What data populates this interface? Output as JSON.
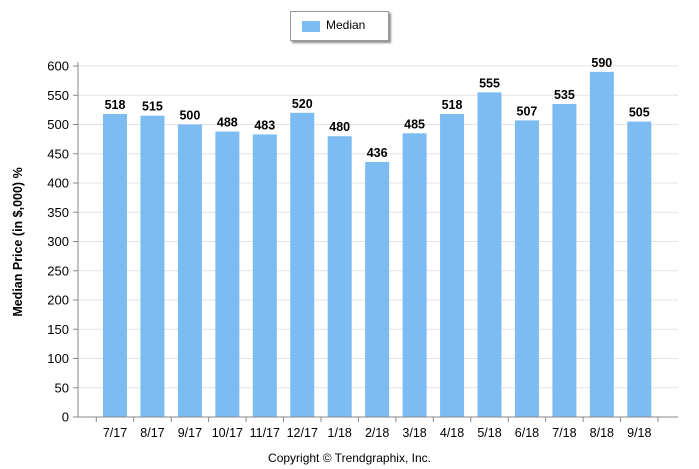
{
  "chart_data": {
    "type": "bar",
    "categories": [
      "7/17",
      "8/17",
      "9/17",
      "10/17",
      "11/17",
      "12/17",
      "1/18",
      "2/18",
      "3/18",
      "4/18",
      "5/18",
      "6/18",
      "7/18",
      "8/18",
      "9/18"
    ],
    "series": [
      {
        "name": "Median",
        "values": [
          518,
          515,
          500,
          488,
          483,
          520,
          480,
          436,
          485,
          518,
          555,
          507,
          535,
          590,
          505
        ]
      }
    ],
    "ylabel": "Median Price (in $,000) %",
    "xlabel": "",
    "ylim": [
      0,
      600
    ],
    "yticks": [
      0,
      50,
      100,
      150,
      200,
      250,
      300,
      350,
      400,
      450,
      500,
      550,
      600
    ],
    "grid": true,
    "legend_position": "top-center",
    "bar_color": "#7cbcf2",
    "data_labels": true
  },
  "footer": {
    "copyright": "Copyright © Trendgraphix, Inc."
  }
}
